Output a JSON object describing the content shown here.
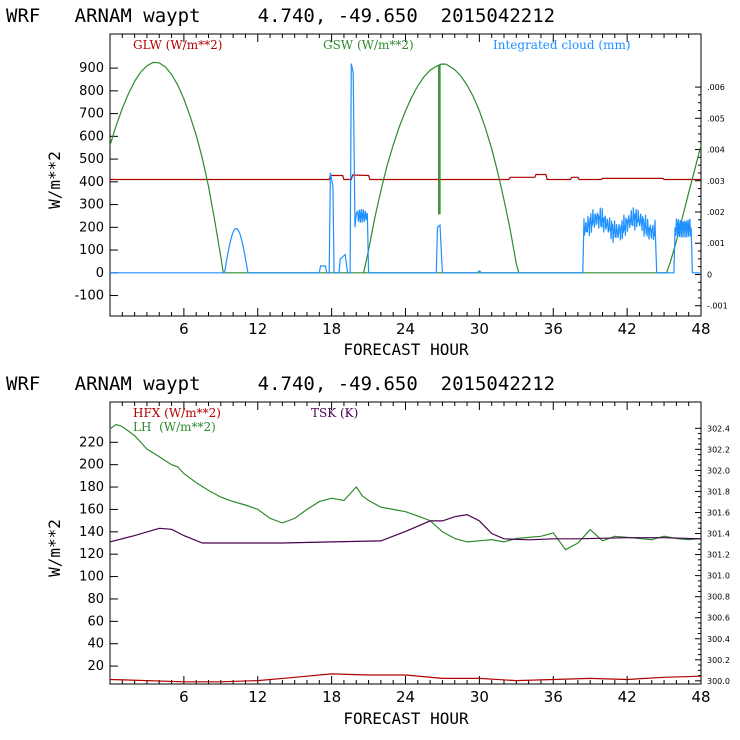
{
  "colors": {
    "red": "#b00000",
    "green": "#2e8b2e",
    "blue": "#1e90ff",
    "purple": "#4b0050"
  },
  "chart_data": [
    {
      "type": "line",
      "title": "WRF   ARNAM waypt     4.740, -49.650  2015042212",
      "xlabel": "FORECAST HOUR",
      "ylabel": "W/m**2",
      "xlim": [
        0,
        48
      ],
      "ylim": [
        -190,
        1050
      ],
      "xticks": [
        6,
        12,
        18,
        24,
        30,
        36,
        42,
        48
      ],
      "yticks": [
        -100,
        0,
        100,
        200,
        300,
        400,
        500,
        600,
        700,
        800,
        900
      ],
      "ylim_right": [
        -0.00133,
        0.0077
      ],
      "yticks_right": [
        ".006",
        ".005",
        ".004",
        ".003",
        ".002",
        ".001",
        "0",
        "-.001"
      ],
      "yticks_right_values": [
        0.006,
        0.005,
        0.004,
        0.003,
        0.002,
        0.001,
        0,
        -0.001
      ],
      "legend": [
        {
          "label": "GLW (W/m**2)",
          "color": "red"
        },
        {
          "label": "GSW (W/m**2)",
          "color": "green"
        },
        {
          "label": "Integrated cloud (mm)",
          "color": "blue"
        }
      ],
      "series": [
        {
          "name": "GLW (W/m**2)",
          "color": "red",
          "axis": "left",
          "points": [
            [
              0,
              410
            ],
            [
              17.8,
              410
            ],
            [
              17.9,
              428
            ],
            [
              18.9,
              428
            ],
            [
              19,
              410
            ],
            [
              19.6,
              410
            ],
            [
              19.7,
              430
            ],
            [
              21,
              428
            ],
            [
              21.1,
              410
            ],
            [
              32.4,
              410
            ],
            [
              32.5,
              420
            ],
            [
              34.5,
              420
            ],
            [
              34.6,
              432
            ],
            [
              35.4,
              432
            ],
            [
              35.5,
              410
            ],
            [
              37.4,
              410
            ],
            [
              37.5,
              420
            ],
            [
              38,
              420
            ],
            [
              38.1,
              410
            ],
            [
              39.9,
              410
            ],
            [
              40,
              415
            ],
            [
              44.9,
              415
            ],
            [
              45,
              410
            ],
            [
              48,
              410
            ]
          ]
        },
        {
          "name": "GSW (W/m**2)",
          "color": "green",
          "axis": "left",
          "points": [
            [
              0,
              560
            ],
            [
              0.5,
              648
            ],
            [
              1,
              723
            ],
            [
              1.5,
              788
            ],
            [
              2,
              842
            ],
            [
              2.5,
              883
            ],
            [
              3,
              910
            ],
            [
              3.5,
              925
            ],
            [
              4,
              923
            ],
            [
              4.5,
              905
            ],
            [
              5,
              872
            ],
            [
              5.5,
              826
            ],
            [
              6,
              764
            ],
            [
              6.5,
              690
            ],
            [
              7,
              605
            ],
            [
              7.5,
              504
            ],
            [
              8,
              380
            ],
            [
              8.5,
              230
            ],
            [
              9,
              70
            ],
            [
              9.2,
              0
            ],
            [
              33.2,
              0
            ],
            [
              33,
              40
            ],
            [
              32.5,
              190
            ],
            [
              32,
              320
            ],
            [
              31.5,
              440
            ],
            [
              31,
              545
            ],
            [
              30.5,
              635
            ],
            [
              30,
              712
            ],
            [
              29.5,
              775
            ],
            [
              29,
              825
            ],
            [
              28.5,
              865
            ],
            [
              28,
              893
            ],
            [
              27.5,
              910
            ],
            [
              27.3,
              917
            ],
            [
              27,
              918
            ],
            [
              26.8,
              916
            ],
            [
              26.8,
              260
            ],
            [
              26.7,
              260
            ],
            [
              26.7,
              913
            ],
            [
              26.5,
              908
            ],
            [
              26,
              891
            ],
            [
              25.5,
              862
            ],
            [
              25,
              822
            ],
            [
              24.5,
              772
            ],
            [
              24,
              712
            ],
            [
              23.5,
              642
            ],
            [
              23,
              562
            ],
            [
              22.5,
              470
            ],
            [
              22,
              362
            ],
            [
              21.5,
              240
            ],
            [
              21,
              100
            ],
            [
              20.6,
              0
            ],
            [
              45.2,
              0
            ],
            [
              45.5,
              45
            ],
            [
              46,
              140
            ],
            [
              46.5,
              245
            ],
            [
              47,
              352
            ],
            [
              47.5,
              455
            ],
            [
              48,
              560
            ]
          ]
        }
      ]
    },
    {
      "type": "line",
      "title": "WRF   ARNAM waypt     4.740, -49.650  2015042212",
      "xlabel": "FORECAST HOUR",
      "ylabel": "W/m**2",
      "xlim": [
        0,
        48
      ],
      "ylim": [
        4,
        256
      ],
      "xticks": [
        6,
        12,
        18,
        24,
        30,
        36,
        42,
        48
      ],
      "yticks": [
        20,
        40,
        60,
        80,
        100,
        120,
        140,
        160,
        180,
        200,
        220
      ],
      "ylim_right": [
        299.97,
        302.65
      ],
      "yticks_right": [
        "302.4",
        "302.2",
        "302.0",
        "301.8",
        "301.6",
        "301.4",
        "301.2",
        "301.0",
        "300.8",
        "300.6",
        "300.4",
        "300.2",
        "300.0"
      ],
      "yticks_right_values": [
        302.4,
        302.2,
        302.0,
        301.8,
        301.6,
        301.4,
        301.2,
        301.0,
        300.8,
        300.6,
        300.4,
        300.2,
        300.0
      ],
      "legend": [
        {
          "label": "HFX (W/m**2)",
          "color": "red"
        },
        {
          "label": "LH  (W/m**2)",
          "color": "green"
        },
        {
          "label": "TSK (K)",
          "color": "purple"
        }
      ],
      "series": [
        {
          "name": "HFX (W/m**2)",
          "color": "red",
          "axis": "left",
          "points": [
            [
              0,
              8
            ],
            [
              3,
              7
            ],
            [
              6,
              6
            ],
            [
              9,
              6
            ],
            [
              12,
              7
            ],
            [
              15,
              10
            ],
            [
              18,
              13
            ],
            [
              21,
              12
            ],
            [
              24,
              12
            ],
            [
              27,
              9
            ],
            [
              30,
              9
            ],
            [
              33,
              7
            ],
            [
              36,
              8
            ],
            [
              39,
              9
            ],
            [
              42,
              8
            ],
            [
              45,
              10
            ],
            [
              48,
              11
            ]
          ]
        },
        {
          "name": "LH  (W/m**2)",
          "color": "green",
          "axis": "left",
          "points": [
            [
              0,
              232
            ],
            [
              0.5,
              236
            ],
            [
              1,
              234
            ],
            [
              2,
              226
            ],
            [
              3,
              214
            ],
            [
              4,
              207
            ],
            [
              5,
              200
            ],
            [
              5.5,
              198
            ],
            [
              6,
              192
            ],
            [
              7,
              184
            ],
            [
              8,
              177
            ],
            [
              9,
              171
            ],
            [
              10,
              167
            ],
            [
              11,
              164
            ],
            [
              12,
              160
            ],
            [
              13,
              152
            ],
            [
              14,
              148
            ],
            [
              15,
              152
            ],
            [
              16,
              160
            ],
            [
              17,
              167
            ],
            [
              18,
              170
            ],
            [
              19,
              168
            ],
            [
              20,
              180
            ],
            [
              20.5,
              172
            ],
            [
              21,
              168
            ],
            [
              22,
              162
            ],
            [
              23,
              160
            ],
            [
              24,
              158
            ],
            [
              25,
              154
            ],
            [
              26,
              150
            ],
            [
              27,
              140
            ],
            [
              28,
              134
            ],
            [
              29,
              131
            ],
            [
              30,
              132
            ],
            [
              31,
              133
            ],
            [
              32,
              131
            ],
            [
              33,
              134
            ],
            [
              34,
              135
            ],
            [
              35,
              136
            ],
            [
              36,
              139
            ],
            [
              37,
              124
            ],
            [
              38,
              130
            ],
            [
              39,
              142
            ],
            [
              40,
              132
            ],
            [
              41,
              136
            ],
            [
              42,
              135
            ],
            [
              43,
              134
            ],
            [
              44,
              133
            ],
            [
              45,
              136
            ],
            [
              46,
              134
            ],
            [
              47,
              133
            ],
            [
              48,
              134
            ]
          ]
        },
        {
          "name": "TSK (K)",
          "color": "purple",
          "axis": "right",
          "points": [
            [
              0,
              301.32
            ],
            [
              2,
              301.38
            ],
            [
              4,
              301.45
            ],
            [
              5,
              301.44
            ],
            [
              6,
              301.38
            ],
            [
              7.5,
              301.31
            ],
            [
              10,
              301.31
            ],
            [
              14,
              301.31
            ],
            [
              18,
              301.32
            ],
            [
              22,
              301.33
            ],
            [
              24,
              301.42
            ],
            [
              25,
              301.47
            ],
            [
              26,
              301.52
            ],
            [
              27,
              301.52
            ],
            [
              28,
              301.56
            ],
            [
              29,
              301.58
            ],
            [
              30,
              301.52
            ],
            [
              31,
              301.4
            ],
            [
              32,
              301.35
            ],
            [
              34,
              301.34
            ],
            [
              36,
              301.35
            ],
            [
              38,
              301.35
            ],
            [
              42,
              301.36
            ],
            [
              45,
              301.36
            ],
            [
              48,
              301.35
            ]
          ]
        }
      ],
      "note_bottom_right_tick": "300.0"
    }
  ]
}
